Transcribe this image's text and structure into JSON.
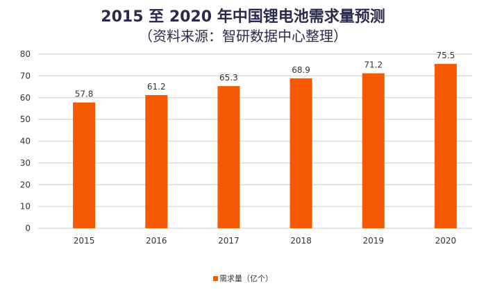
{
  "chart_data": {
    "type": "bar",
    "title": "2015 至 2020 年中国锂电池需求量预测",
    "subtitle": "（资料来源：智研数据中心整理）",
    "categories": [
      "2015",
      "2016",
      "2017",
      "2018",
      "2019",
      "2020"
    ],
    "series": [
      {
        "name": "需求量（亿个）",
        "values": [
          57.8,
          61.2,
          65.3,
          68.9,
          71.2,
          75.5
        ]
      }
    ],
    "ylim": [
      0,
      80
    ],
    "yticks": [
      0,
      10,
      20,
      30,
      40,
      50,
      60,
      70,
      80
    ],
    "grid": true,
    "legend": "bottom",
    "color": "#f55a00"
  }
}
